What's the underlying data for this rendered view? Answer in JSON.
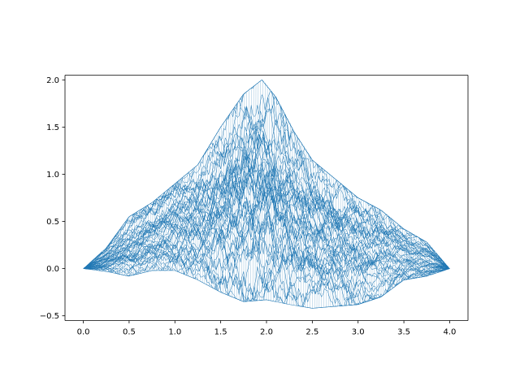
{
  "chart_data": {
    "type": "line",
    "title": "",
    "xlabel": "",
    "ylabel": "",
    "xlim": [
      -0.2,
      4.2
    ],
    "ylim": [
      -0.55,
      2.05
    ],
    "xticks": [
      0.0,
      0.5,
      1.0,
      1.5,
      2.0,
      2.5,
      3.0,
      3.5,
      4.0
    ],
    "xtick_labels": [
      "0.0",
      "0.5",
      "1.0",
      "1.5",
      "2.0",
      "2.5",
      "3.0",
      "3.5",
      "4.0"
    ],
    "yticks": [
      -0.5,
      0.0,
      0.5,
      1.0,
      1.5,
      2.0
    ],
    "ytick_labels": [
      "−0.5",
      "0.0",
      "0.5",
      "1.0",
      "1.5",
      "2.0"
    ],
    "grid": false,
    "legend": "none",
    "series_style": "dense mesh of many overlapping random-walk paths from (0, 0) to (4, 0)",
    "upper_envelope": {
      "x": [
        0.0,
        0.25,
        0.5,
        0.75,
        1.0,
        1.25,
        1.5,
        1.75,
        1.95,
        2.1,
        2.3,
        2.5,
        2.75,
        3.0,
        3.25,
        3.5,
        3.75,
        4.0
      ],
      "y": [
        0.0,
        0.22,
        0.55,
        0.7,
        0.9,
        1.1,
        1.5,
        1.85,
        2.0,
        1.82,
        1.45,
        1.15,
        0.95,
        0.75,
        0.62,
        0.42,
        0.28,
        0.0
      ]
    },
    "lower_envelope": {
      "x": [
        0.0,
        0.25,
        0.5,
        0.75,
        1.0,
        1.25,
        1.5,
        1.75,
        2.0,
        2.25,
        2.5,
        2.75,
        3.0,
        3.25,
        3.5,
        3.75,
        4.0
      ],
      "y": [
        0.0,
        -0.03,
        -0.08,
        -0.02,
        -0.02,
        -0.12,
        -0.25,
        -0.35,
        -0.33,
        -0.38,
        -0.42,
        -0.4,
        -0.38,
        -0.3,
        -0.12,
        -0.08,
        0.0
      ]
    },
    "color": "#1f77b4"
  }
}
